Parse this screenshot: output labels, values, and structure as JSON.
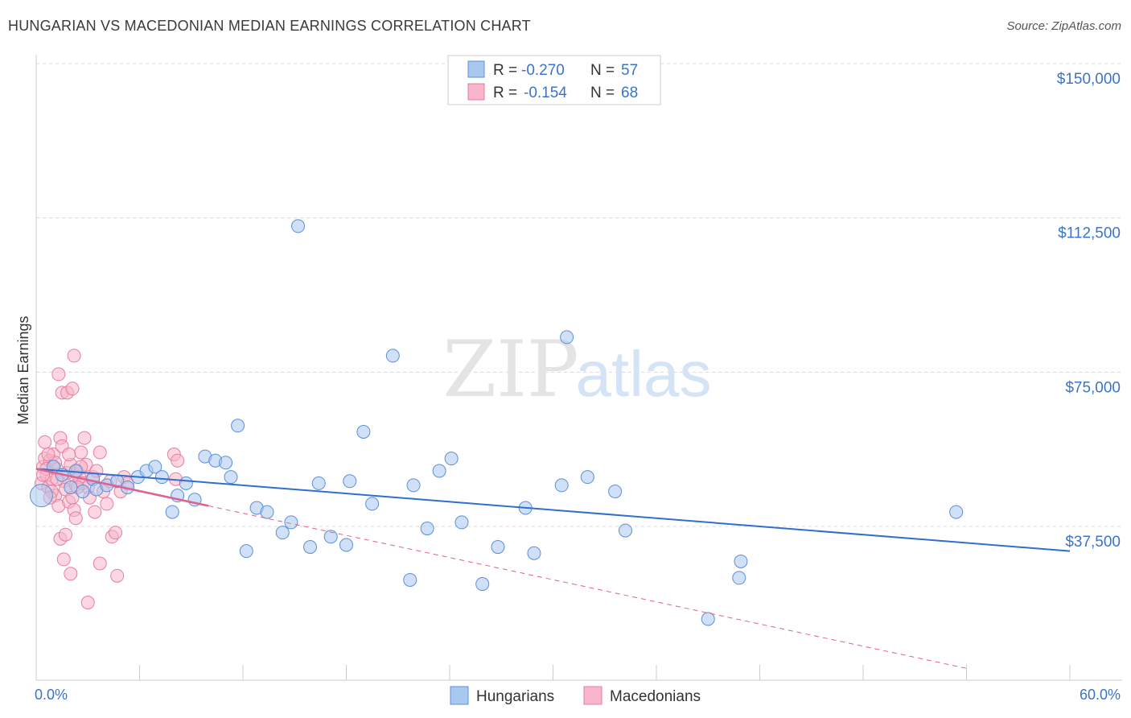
{
  "header": {
    "title": "HUNGARIAN VS MACEDONIAN MEDIAN EARNINGS CORRELATION CHART",
    "source": "Source: ZipAtlas.com"
  },
  "watermark": {
    "zip": "ZIP",
    "atlas": "atlas"
  },
  "colors": {
    "blue_fill": "#a9c8f0",
    "blue_stroke": "#5b8fd6",
    "blue_line": "#2f6fcd",
    "pink_fill": "#f7b6cb",
    "pink_stroke": "#e67ea0",
    "pink_line": "#e0608e",
    "axis_text": "#3a74c9",
    "grid": "#d8d8d8"
  },
  "chart_data": {
    "type": "scatter",
    "title": "HUNGARIAN VS MACEDONIAN MEDIAN EARNINGS CORRELATION CHART",
    "xlabel": "",
    "ylabel": "Median Earnings",
    "xlim": [
      0,
      60
    ],
    "ylim": [
      0,
      155000
    ],
    "x_tick_labels": [
      {
        "value": 0,
        "label": "0.0%"
      },
      {
        "value": 60,
        "label": "60.0%"
      }
    ],
    "y_ticks": [
      {
        "value": 37500,
        "label": "$37,500"
      },
      {
        "value": 75000,
        "label": "$75,000"
      },
      {
        "value": 112500,
        "label": "$112,500"
      },
      {
        "value": 150000,
        "label": "$150,000"
      }
    ],
    "legend": {
      "placement": "top-center",
      "entries": [
        {
          "series": "Hungarians",
          "r_label": "R =",
          "r_value": "-0.270",
          "n_label": "N =",
          "n_value": "57"
        },
        {
          "series": "Macedonians",
          "r_label": "R =",
          "r_value": "-0.154",
          "n_label": "N =",
          "n_value": "68"
        }
      ]
    },
    "series": [
      {
        "name": "Hungarians",
        "color": "#a9c8f0",
        "trend": {
          "x": [
            0,
            60
          ],
          "y": [
            51500,
            31500
          ],
          "style": "solid"
        },
        "points": [
          {
            "x": 0.3,
            "y": 45000,
            "big": true
          },
          {
            "x": 1.0,
            "y": 52000
          },
          {
            "x": 1.5,
            "y": 50000
          },
          {
            "x": 2.3,
            "y": 51000
          },
          {
            "x": 2.7,
            "y": 46000
          },
          {
            "x": 3.3,
            "y": 49000
          },
          {
            "x": 3.5,
            "y": 46500
          },
          {
            "x": 4.1,
            "y": 47500
          },
          {
            "x": 4.7,
            "y": 48500
          },
          {
            "x": 5.3,
            "y": 47000
          },
          {
            "x": 5.9,
            "y": 49500
          },
          {
            "x": 6.4,
            "y": 51000
          },
          {
            "x": 6.9,
            "y": 52000
          },
          {
            "x": 7.3,
            "y": 49500
          },
          {
            "x": 7.9,
            "y": 41000
          },
          {
            "x": 8.2,
            "y": 45000
          },
          {
            "x": 8.7,
            "y": 48000
          },
          {
            "x": 9.2,
            "y": 44000
          },
          {
            "x": 9.8,
            "y": 54500
          },
          {
            "x": 10.4,
            "y": 53500
          },
          {
            "x": 11.0,
            "y": 53000
          },
          {
            "x": 11.3,
            "y": 49500
          },
          {
            "x": 11.7,
            "y": 62000
          },
          {
            "x": 12.2,
            "y": 31500
          },
          {
            "x": 12.8,
            "y": 42000
          },
          {
            "x": 13.4,
            "y": 41000
          },
          {
            "x": 14.3,
            "y": 36000
          },
          {
            "x": 14.8,
            "y": 38500
          },
          {
            "x": 15.2,
            "y": 110500
          },
          {
            "x": 15.9,
            "y": 32500
          },
          {
            "x": 16.4,
            "y": 48000
          },
          {
            "x": 17.1,
            "y": 35000
          },
          {
            "x": 18.0,
            "y": 33000
          },
          {
            "x": 18.2,
            "y": 48500
          },
          {
            "x": 19.0,
            "y": 60500
          },
          {
            "x": 19.5,
            "y": 43000
          },
          {
            "x": 20.7,
            "y": 79000
          },
          {
            "x": 21.7,
            "y": 24500
          },
          {
            "x": 21.9,
            "y": 47500
          },
          {
            "x": 22.7,
            "y": 37000
          },
          {
            "x": 23.4,
            "y": 51000
          },
          {
            "x": 24.1,
            "y": 54000
          },
          {
            "x": 24.7,
            "y": 38500
          },
          {
            "x": 25.9,
            "y": 23500
          },
          {
            "x": 26.8,
            "y": 32500
          },
          {
            "x": 28.4,
            "y": 42000
          },
          {
            "x": 28.9,
            "y": 31000
          },
          {
            "x": 30.5,
            "y": 47500
          },
          {
            "x": 30.8,
            "y": 83500
          },
          {
            "x": 32.0,
            "y": 49500
          },
          {
            "x": 33.6,
            "y": 46000
          },
          {
            "x": 34.2,
            "y": 36500
          },
          {
            "x": 39.0,
            "y": 15000
          },
          {
            "x": 40.9,
            "y": 29000
          },
          {
            "x": 40.8,
            "y": 25000
          },
          {
            "x": 53.4,
            "y": 41000
          },
          {
            "x": 2.0,
            "y": 47000
          }
        ]
      },
      {
        "name": "Macedonians",
        "color": "#f7b6cb",
        "trend": {
          "x": [
            0,
            10
          ],
          "y": [
            51500,
            42500
          ],
          "style": "solid",
          "dashed_extension": {
            "x": [
              10,
              54
            ],
            "y": [
              42500,
              3000
            ]
          }
        },
        "points": [
          {
            "x": 0.3,
            "y": 48000
          },
          {
            "x": 0.4,
            "y": 52000
          },
          {
            "x": 0.5,
            "y": 54000
          },
          {
            "x": 0.5,
            "y": 58000
          },
          {
            "x": 0.6,
            "y": 50000
          },
          {
            "x": 0.7,
            "y": 47000
          },
          {
            "x": 0.8,
            "y": 53500
          },
          {
            "x": 0.9,
            "y": 49000
          },
          {
            "x": 1.0,
            "y": 55000
          },
          {
            "x": 1.1,
            "y": 45000
          },
          {
            "x": 1.2,
            "y": 51500
          },
          {
            "x": 1.3,
            "y": 42500
          },
          {
            "x": 1.4,
            "y": 59000
          },
          {
            "x": 1.5,
            "y": 57000
          },
          {
            "x": 1.6,
            "y": 48500
          },
          {
            "x": 1.7,
            "y": 46500
          },
          {
            "x": 1.8,
            "y": 50500
          },
          {
            "x": 1.9,
            "y": 43500
          },
          {
            "x": 2.0,
            "y": 52500
          },
          {
            "x": 2.1,
            "y": 44500
          },
          {
            "x": 2.2,
            "y": 41500
          },
          {
            "x": 2.3,
            "y": 47500
          },
          {
            "x": 2.4,
            "y": 51000
          },
          {
            "x": 2.5,
            "y": 49500
          },
          {
            "x": 2.6,
            "y": 55500
          },
          {
            "x": 2.7,
            "y": 48000
          },
          {
            "x": 1.3,
            "y": 74500
          },
          {
            "x": 1.5,
            "y": 70000
          },
          {
            "x": 1.8,
            "y": 70000
          },
          {
            "x": 2.1,
            "y": 71000
          },
          {
            "x": 2.2,
            "y": 79000
          },
          {
            "x": 1.4,
            "y": 34500
          },
          {
            "x": 1.7,
            "y": 35500
          },
          {
            "x": 1.6,
            "y": 29500
          },
          {
            "x": 2.0,
            "y": 26000
          },
          {
            "x": 2.3,
            "y": 39500
          },
          {
            "x": 2.8,
            "y": 59000
          },
          {
            "x": 2.9,
            "y": 52500
          },
          {
            "x": 3.0,
            "y": 47000
          },
          {
            "x": 3.1,
            "y": 44500
          },
          {
            "x": 3.3,
            "y": 49500
          },
          {
            "x": 3.5,
            "y": 51000
          },
          {
            "x": 3.7,
            "y": 55500
          },
          {
            "x": 3.9,
            "y": 46000
          },
          {
            "x": 4.1,
            "y": 43000
          },
          {
            "x": 4.3,
            "y": 48500
          },
          {
            "x": 4.4,
            "y": 35000
          },
          {
            "x": 4.6,
            "y": 36000
          },
          {
            "x": 4.7,
            "y": 25500
          },
          {
            "x": 3.7,
            "y": 28500
          },
          {
            "x": 3.0,
            "y": 19000
          },
          {
            "x": 4.9,
            "y": 46000
          },
          {
            "x": 5.1,
            "y": 49500
          },
          {
            "x": 5.3,
            "y": 48000
          },
          {
            "x": 8.0,
            "y": 55000
          },
          {
            "x": 8.1,
            "y": 49000
          },
          {
            "x": 8.2,
            "y": 53500
          },
          {
            "x": 0.6,
            "y": 51500
          },
          {
            "x": 0.9,
            "y": 46000
          },
          {
            "x": 1.1,
            "y": 53000
          },
          {
            "x": 1.2,
            "y": 49000
          },
          {
            "x": 0.4,
            "y": 50000
          },
          {
            "x": 0.7,
            "y": 55000
          },
          {
            "x": 2.4,
            "y": 47000
          },
          {
            "x": 3.4,
            "y": 41000
          },
          {
            "x": 0.8,
            "y": 44500
          },
          {
            "x": 1.9,
            "y": 55000
          },
          {
            "x": 2.6,
            "y": 52000
          }
        ]
      }
    ]
  },
  "bottom_legend": [
    {
      "label": "Hungarians"
    },
    {
      "label": "Macedonians"
    }
  ]
}
